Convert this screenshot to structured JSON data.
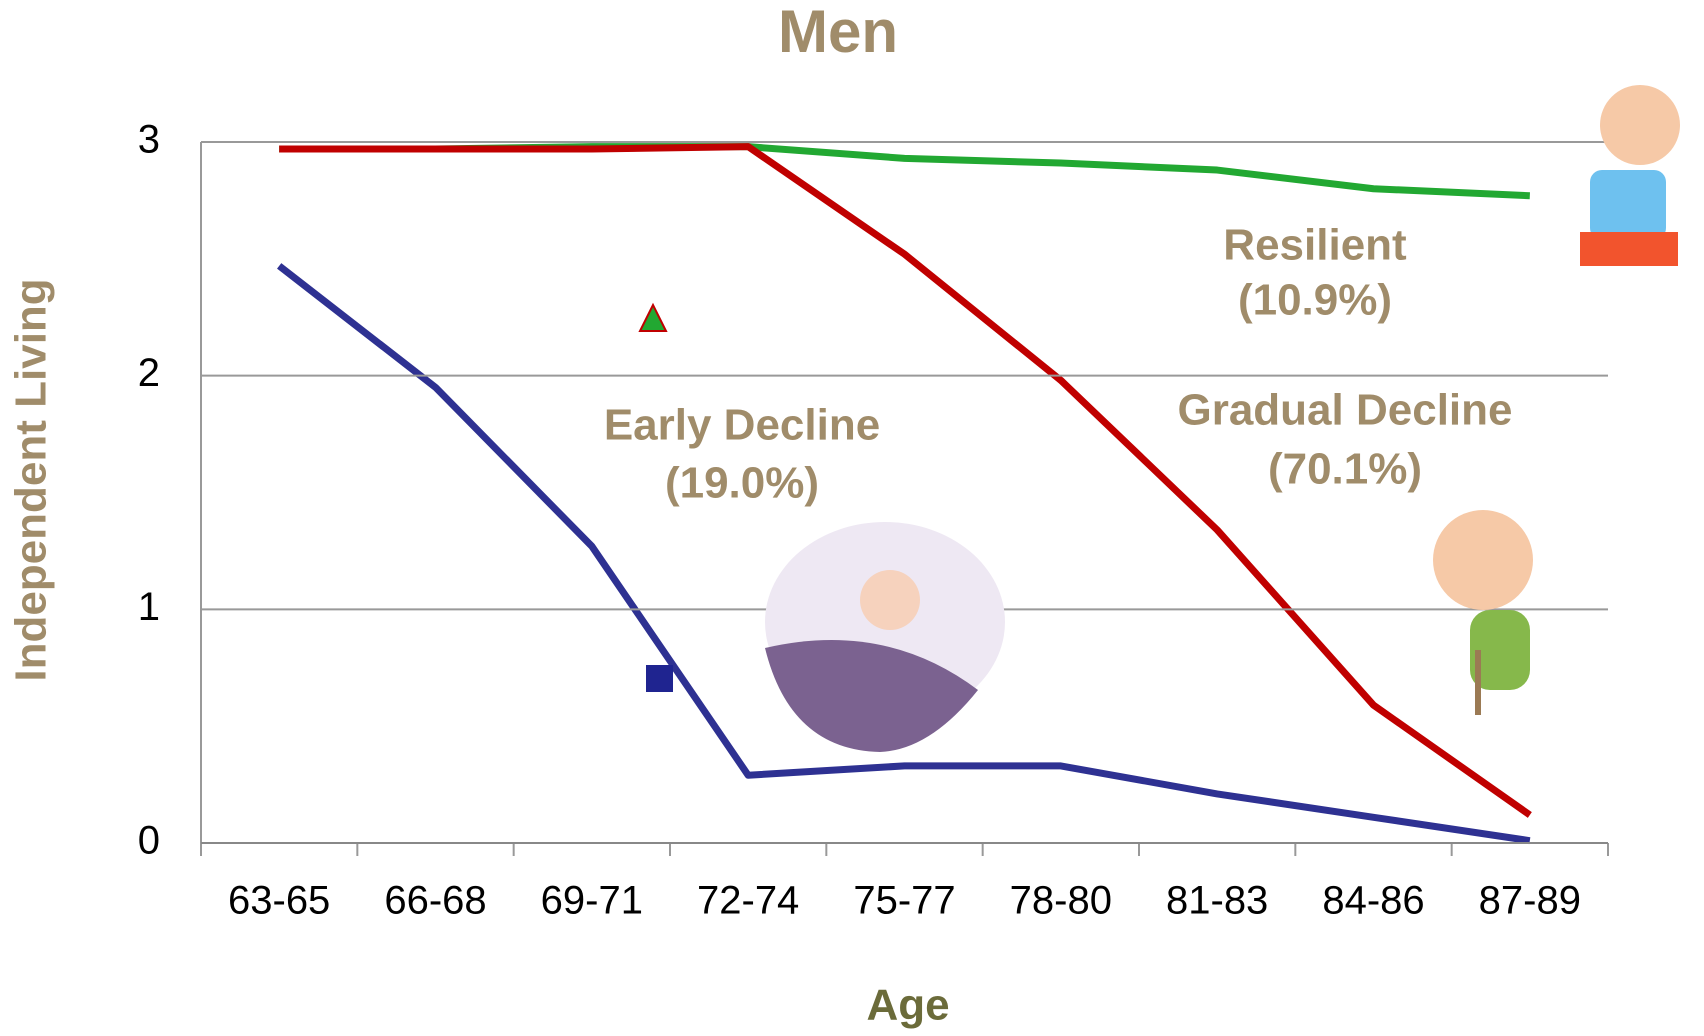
{
  "chart_data": {
    "type": "line",
    "title": "Men",
    "x_label": "Age",
    "y_label": "Independent Living",
    "categories": [
      "63-65",
      "66-68",
      "69-71",
      "72-74",
      "75-77",
      "78-80",
      "81-83",
      "84-86",
      "87-89"
    ],
    "series": [
      {
        "name": "Resilient",
        "share": "(10.9%)",
        "color": "#22a832",
        "values": [
          2.97,
          2.97,
          2.98,
          2.98,
          2.93,
          2.91,
          2.88,
          2.8,
          2.77
        ]
      },
      {
        "name": "Gradual Decline",
        "share": "(70.1%)",
        "color": "#c00000",
        "values": [
          2.97,
          2.97,
          2.97,
          2.98,
          2.52,
          1.98,
          1.34,
          0.59,
          0.12
        ]
      },
      {
        "name": "Early Decline",
        "share": "(19.0%)",
        "color": "#2e3192",
        "values": [
          2.47,
          1.95,
          1.27,
          0.29,
          0.33,
          0.33,
          0.21,
          0.11,
          0.01
        ]
      }
    ],
    "ylim": [
      0,
      3
    ],
    "yticks": [
      0,
      1,
      2,
      3
    ],
    "grid": true
  }
}
